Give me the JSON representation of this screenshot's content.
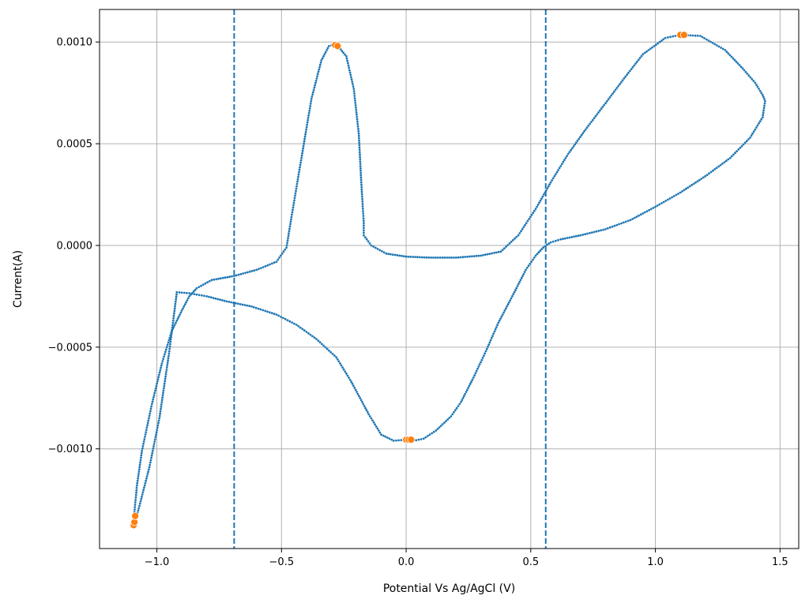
{
  "chart_data": {
    "type": "scatter",
    "title": "",
    "xlabel": "Potential Vs Ag/AgCl (V)",
    "ylabel": "Current(A)",
    "xlim": [
      -1.23,
      1.575
    ],
    "ylim": [
      -0.00149,
      0.00116
    ],
    "grid": true,
    "x_ticks": [
      -1.0,
      -0.5,
      0.0,
      0.5,
      1.0,
      1.5
    ],
    "x_tick_labels": [
      "−1.0",
      "−0.5",
      "0.0",
      "0.5",
      "1.0",
      "1.5"
    ],
    "y_ticks": [
      -0.001,
      -0.0005,
      0.0,
      0.0005,
      0.001
    ],
    "y_tick_labels": [
      "−0.0010",
      "−0.0005",
      "0.0000",
      "0.0005",
      "0.0010"
    ],
    "vlines": [
      -0.69,
      0.56
    ],
    "colors": {
      "series": "#1f77b4",
      "peaks": "#ff7f0e",
      "grid": "#b0b0b0",
      "vline": "#1f77b4"
    },
    "series": [
      {
        "role": "cv-curve",
        "x": [
          -1.09,
          -1.07,
          -1.03,
          -0.99,
          -0.95,
          -0.92,
          -0.87,
          -0.8,
          -0.72,
          -0.62,
          -0.52,
          -0.44,
          -0.36,
          -0.28,
          -0.22,
          -0.15,
          -0.1,
          -0.05,
          0.0,
          0.03,
          0.07,
          0.12,
          0.18,
          0.22,
          0.27,
          0.32,
          0.37,
          0.43,
          0.48,
          0.52,
          0.55,
          0.58,
          0.62,
          0.7,
          0.8,
          0.9,
          1.0,
          1.1,
          1.2,
          1.3,
          1.38,
          1.43,
          1.44,
          1.43,
          1.4,
          1.35,
          1.28,
          1.18,
          1.1,
          1.04,
          0.95,
          0.88,
          0.8,
          0.72,
          0.65,
          0.58,
          0.52,
          0.45,
          0.38,
          0.3,
          0.2,
          0.1,
          0.0,
          -0.08,
          -0.14,
          -0.17,
          -0.17,
          -0.18,
          -0.19,
          -0.21,
          -0.24,
          -0.28,
          -0.31,
          -0.34,
          -0.38,
          -0.42,
          -0.46,
          -0.48,
          -0.52,
          -0.6,
          -0.69,
          -0.78,
          -0.84,
          -0.87,
          -0.9,
          -0.94,
          -0.98,
          -1.02,
          -1.06,
          -1.08,
          -1.09
        ],
        "y": [
          -0.00137,
          -0.00128,
          -0.00109,
          -0.00085,
          -0.00052,
          -0.00023,
          -0.000235,
          -0.00025,
          -0.000275,
          -0.0003,
          -0.00034,
          -0.00039,
          -0.00046,
          -0.00055,
          -0.00067,
          -0.00083,
          -0.00093,
          -0.00096,
          -0.000955,
          -0.00096,
          -0.00095,
          -0.00091,
          -0.00084,
          -0.00077,
          -0.00065,
          -0.00052,
          -0.00038,
          -0.00024,
          -0.00012,
          -5e-05,
          -1e-05,
          1.5e-05,
          3e-05,
          5e-05,
          8e-05,
          0.000125,
          0.00019,
          0.00026,
          0.00034,
          0.00043,
          0.00053,
          0.00063,
          0.00071,
          0.00074,
          0.0008,
          0.00087,
          0.00096,
          0.00103,
          0.001035,
          0.00102,
          0.00094,
          0.00083,
          0.0007,
          0.00057,
          0.00045,
          0.00031,
          0.00018,
          5e-05,
          -3e-05,
          -5e-05,
          -6e-05,
          -6e-05,
          -5.5e-05,
          -4e-05,
          0.0,
          5e-05,
          0.00011,
          0.00031,
          0.00055,
          0.00077,
          0.00093,
          0.00099,
          0.00098,
          0.00091,
          0.00072,
          0.00043,
          0.00014,
          -1e-05,
          -8e-05,
          -0.00012,
          -0.00015,
          -0.00017,
          -0.00021,
          -0.00025,
          -0.00032,
          -0.00042,
          -0.00058,
          -0.00078,
          -0.00101,
          -0.00118,
          -0.00131
        ]
      },
      {
        "role": "peak-markers",
        "x": [
          -1.093,
          -1.09,
          -1.087,
          -0.285,
          -0.275,
          0.0,
          0.01,
          0.02,
          1.1,
          1.115
        ],
        "y": [
          -0.001375,
          -0.00136,
          -0.00133,
          0.000985,
          0.00098,
          -0.000955,
          -0.000955,
          -0.000955,
          0.001035,
          0.001035
        ]
      }
    ]
  }
}
